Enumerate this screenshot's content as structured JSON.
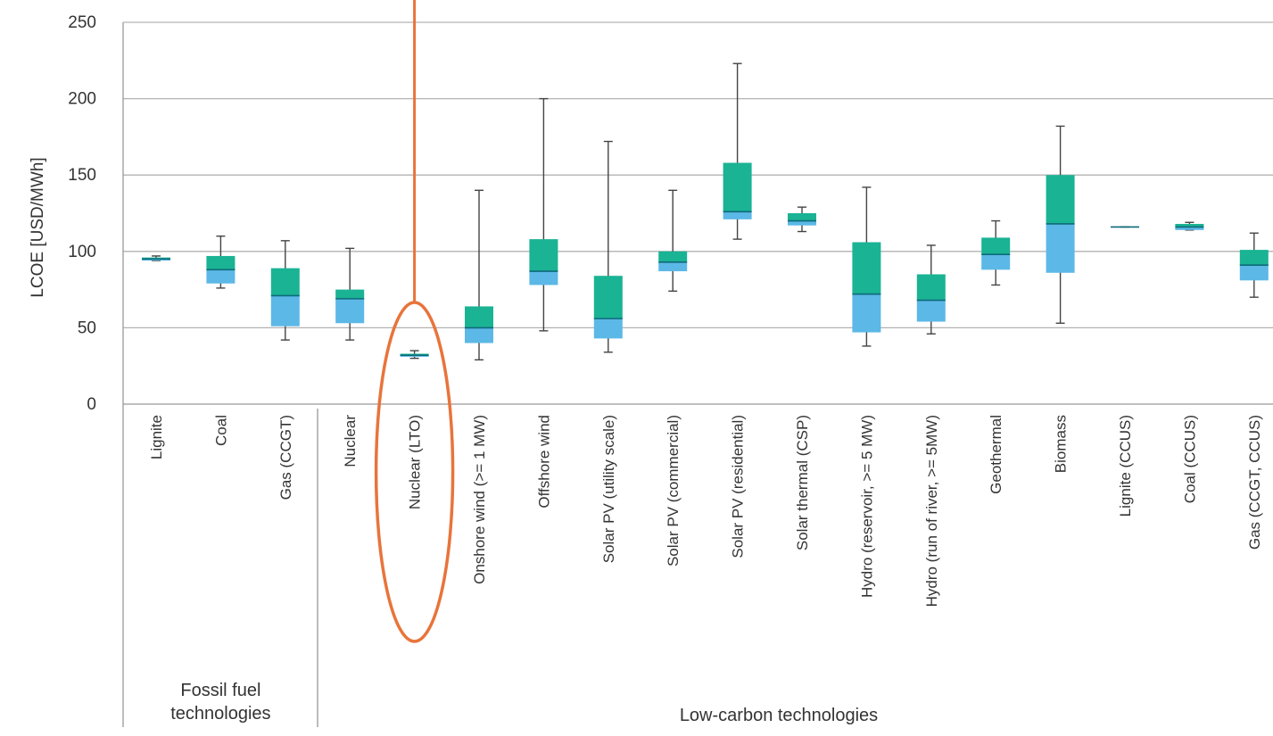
{
  "chart_data": {
    "type": "box",
    "ylabel": "LCOE [USD/MWh]",
    "ylim": [
      0,
      250
    ],
    "yticks": [
      0,
      50,
      100,
      150,
      200,
      250
    ],
    "grid": "horizontal",
    "colors": {
      "upper_box": "#1ab394",
      "lower_box": "#5cb8e6",
      "median": "#0e6b7a",
      "whisker": "#444444",
      "highlight": "#e8743b"
    },
    "categories": [
      "Lignite",
      "Coal",
      "Gas (CCGT)",
      "Nuclear",
      "Nuclear (LTO)",
      "Onshore wind (>= 1 MW)",
      "Offshore wind",
      "Solar PV (utility scale)",
      "Solar PV (commercial)",
      "Solar PV (residential)",
      "Solar thermal (CSP)",
      "Hydro (reservoir, >= 5 MW)",
      "Hydro (run of river, >= 5MW)",
      "Geothermal",
      "Biomass",
      "Lignite (CCUS)",
      "Coal (CCUS)",
      "Gas (CCGT, CCUS)"
    ],
    "groups": [
      {
        "label": "Fossil fuel technologies",
        "start": 0,
        "end": 2
      },
      {
        "label": "Low-carbon technologies",
        "start": 3,
        "end": 17
      }
    ],
    "series": [
      {
        "category": "Lignite",
        "min": 94,
        "q1": 94,
        "median": 95,
        "q3": 96,
        "max": 97
      },
      {
        "category": "Coal",
        "min": 76,
        "q1": 79,
        "median": 88,
        "q3": 97,
        "max": 110
      },
      {
        "category": "Gas (CCGT)",
        "min": 42,
        "q1": 51,
        "median": 71,
        "q3": 89,
        "max": 107
      },
      {
        "category": "Nuclear",
        "min": 42,
        "q1": 53,
        "median": 69,
        "q3": 75,
        "max": 102
      },
      {
        "category": "Nuclear (LTO)",
        "min": 30,
        "q1": 31,
        "median": 32,
        "q3": 33,
        "max": 35
      },
      {
        "category": "Onshore wind (>= 1 MW)",
        "min": 29,
        "q1": 40,
        "median": 50,
        "q3": 64,
        "max": 140
      },
      {
        "category": "Offshore wind",
        "min": 48,
        "q1": 78,
        "median": 87,
        "q3": 108,
        "max": 200
      },
      {
        "category": "Solar PV (utility scale)",
        "min": 34,
        "q1": 43,
        "median": 56,
        "q3": 84,
        "max": 172
      },
      {
        "category": "Solar PV (commercial)",
        "min": 74,
        "q1": 87,
        "median": 93,
        "q3": 100,
        "max": 140
      },
      {
        "category": "Solar PV (residential)",
        "min": 108,
        "q1": 121,
        "median": 126,
        "q3": 158,
        "max": 223
      },
      {
        "category": "Solar thermal (CSP)",
        "min": 113,
        "q1": 117,
        "median": 120,
        "q3": 125,
        "max": 129
      },
      {
        "category": "Hydro (reservoir, >= 5 MW)",
        "min": 38,
        "q1": 47,
        "median": 72,
        "q3": 106,
        "max": 142
      },
      {
        "category": "Hydro (run of river, >= 5MW)",
        "min": 46,
        "q1": 54,
        "median": 68,
        "q3": 85,
        "max": 104
      },
      {
        "category": "Geothermal",
        "min": 78,
        "q1": 88,
        "median": 98,
        "q3": 109,
        "max": 120
      },
      {
        "category": "Biomass",
        "min": 53,
        "q1": 86,
        "median": 118,
        "q3": 150,
        "max": 182
      },
      {
        "category": "Lignite (CCUS)",
        "min": 116,
        "q1": 116,
        "median": 116,
        "q3": 116,
        "max": 116
      },
      {
        "category": "Coal (CCUS)",
        "min": 114,
        "q1": 114,
        "median": 116,
        "q3": 118,
        "max": 119
      },
      {
        "category": "Gas (CCGT, CCUS)",
        "min": 70,
        "q1": 81,
        "median": 91,
        "q3": 101,
        "max": 112
      }
    ],
    "annotations": [
      {
        "type": "ellipse",
        "target": "Nuclear (LTO)"
      },
      {
        "type": "vertical-line",
        "target": "Nuclear (LTO)",
        "from": "top-edge"
      }
    ]
  }
}
